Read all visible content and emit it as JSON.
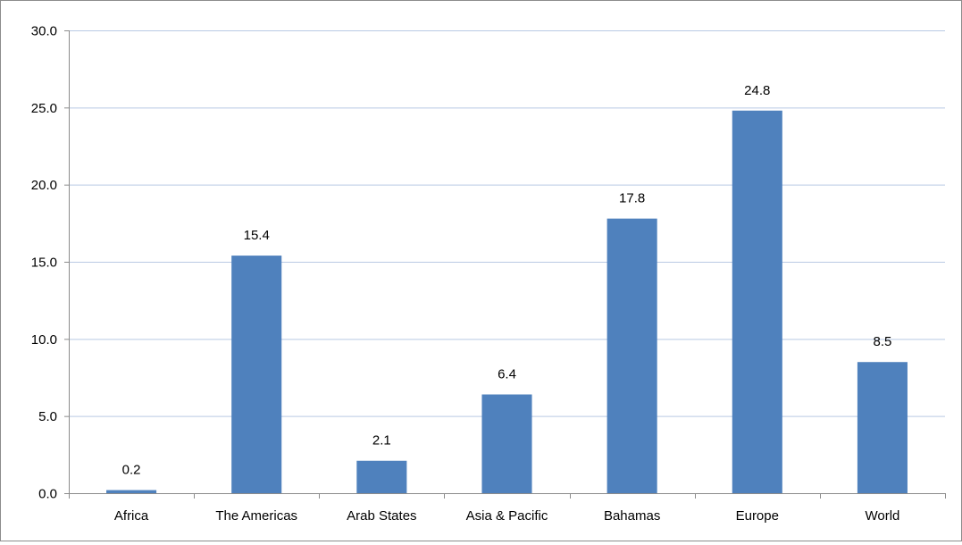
{
  "chart_data": {
    "type": "bar",
    "categories": [
      "Africa",
      "The Americas",
      "Arab States",
      "Asia & Pacific",
      "Bahamas",
      "Europe",
      "World"
    ],
    "values": [
      0.2,
      15.4,
      2.1,
      6.4,
      17.8,
      24.8,
      8.5
    ],
    "data_labels": [
      "0.2",
      "15.4",
      "2.1",
      "6.4",
      "17.8",
      "24.8",
      "8.5"
    ],
    "ylim": [
      0,
      30
    ],
    "yticks": [
      0,
      5,
      10,
      15,
      20,
      25,
      30
    ],
    "ytick_labels": [
      "0.0",
      "5.0",
      "10.0",
      "15.0",
      "20.0",
      "25.0",
      "30.0"
    ],
    "grid": true,
    "legend": false,
    "colors": {
      "bar": "#4f81bd",
      "grid": "#b9c9e4",
      "axis": "#8c8c8c",
      "frame": "#8c8c8c"
    }
  }
}
